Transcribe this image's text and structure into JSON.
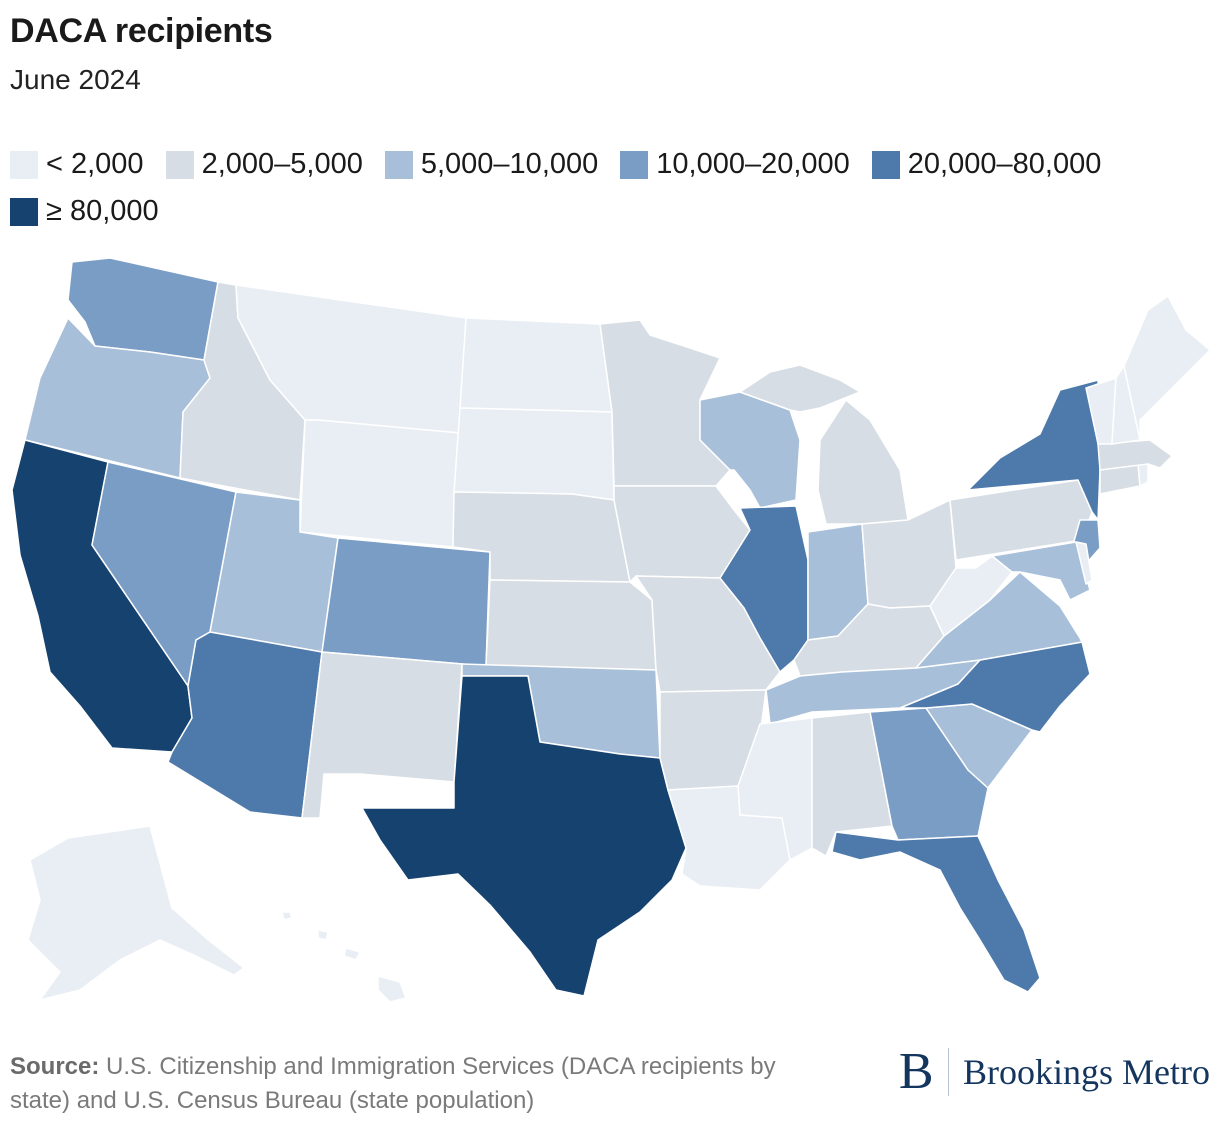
{
  "title": "DACA recipients",
  "subtitle": "June 2024",
  "colors": {
    "lt2000": "#e8eef4",
    "r2000_5000": "#d7dde4",
    "r5000_10000": "#a8bfd9",
    "r10000_20000": "#7a9dc5",
    "r20000_80000": "#4e7aab",
    "ge80000": "#16426f"
  },
  "legend": [
    {
      "label": "< 2,000",
      "color": "#e8eef4"
    },
    {
      "label": "2,000–5,000",
      "color": "#d7dde4"
    },
    {
      "label": "5,000–10,000",
      "color": "#a8bfd9"
    },
    {
      "label": "10,000–20,000",
      "color": "#7a9dc5"
    },
    {
      "label": "20,000–80,000",
      "color": "#4e7aab"
    },
    {
      "label": "≥ 80,000",
      "color": "#16426f"
    }
  ],
  "states": {
    "WA": "10,000–20,000",
    "OR": "5,000–10,000",
    "CA": "≥ 80,000",
    "NV": "10,000–20,000",
    "ID": "2,000–5,000",
    "MT": "< 2,000",
    "WY": "< 2,000",
    "UT": "5,000–10,000",
    "AZ": "20,000–80,000",
    "CO": "10,000–20,000",
    "NM": "2,000–5,000",
    "ND": "< 2,000",
    "SD": "< 2,000",
    "NE": "2,000–5,000",
    "KS": "2,000–5,000",
    "OK": "5,000–10,000",
    "TX": "≥ 80,000",
    "MN": "2,000–5,000",
    "IA": "2,000–5,000",
    "MO": "2,000–5,000",
    "AR": "2,000–5,000",
    "LA": "< 2,000",
    "WI": "5,000–10,000",
    "IL": "20,000–80,000",
    "MI": "2,000–5,000",
    "IN": "5,000–10,000",
    "OH": "2,000–5,000",
    "KY": "2,000–5,000",
    "TN": "5,000–10,000",
    "MS": "< 2,000",
    "AL": "2,000–5,000",
    "GA": "10,000–20,000",
    "FL": "20,000–80,000",
    "SC": "5,000–10,000",
    "NC": "20,000–80,000",
    "VA": "5,000–10,000",
    "WV": "< 2,000",
    "PA": "2,000–5,000",
    "NY": "20,000–80,000",
    "NJ": "10,000–20,000",
    "MD": "5,000–10,000",
    "DE": "< 2,000",
    "CT": "2,000–5,000",
    "RI": "< 2,000",
    "MA": "2,000–5,000",
    "VT": "< 2,000",
    "NH": "< 2,000",
    "ME": "< 2,000",
    "AK": "< 2,000",
    "HI": "< 2,000"
  },
  "source": {
    "label": "Source:",
    "text": " U.S. Citizenship and Immigration Services (DACA recipients by state) and U.S. Census Bureau (state population)"
  },
  "brand": {
    "logo_letter": "B",
    "name": "Brookings Metro"
  }
}
